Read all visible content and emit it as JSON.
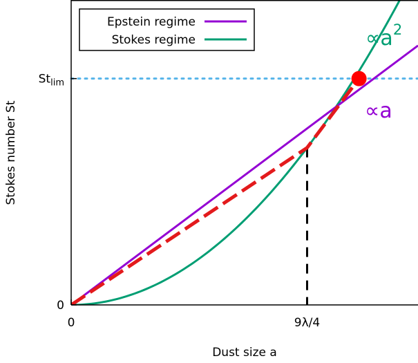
{
  "chart_data": {
    "type": "line",
    "xlabel": "Dust size a",
    "ylabel": "Stokes number St",
    "x_ticks": [
      {
        "value": 0,
        "label": "0"
      },
      {
        "value": 1,
        "label": "9λ/4"
      }
    ],
    "y_ticks": [
      {
        "value": 0,
        "label": "0",
        "sub": ""
      },
      {
        "value": 1.44,
        "label": "St",
        "sub": "lim"
      }
    ],
    "xlim": [
      0,
      1.47
    ],
    "ylim": [
      0,
      1.94
    ],
    "grid": false,
    "legend_position": "top-left",
    "series": [
      {
        "name": "Epstein regime",
        "color": "#9400d3",
        "law": "linear",
        "x": [
          0,
          1.47
        ],
        "y": [
          0,
          1.65
        ]
      },
      {
        "name": "Stokes regime",
        "color": "#009e73",
        "law": "quadratic",
        "x_range": [
          0,
          1.47
        ]
      }
    ],
    "effective_curve": {
      "color": "#e31a1c",
      "style": "dashed",
      "x": [
        0,
        1,
        1.22
      ],
      "y": [
        0,
        1,
        1.44
      ]
    },
    "st_lim_line": {
      "y": 1.44,
      "color": "#56b4e9",
      "style": "dotted"
    },
    "transition_line": {
      "x": 1,
      "color": "#000000",
      "style": "dashed"
    },
    "marker": {
      "x": 1.22,
      "y": 1.44,
      "color": "#ff0000"
    },
    "annotations": [
      {
        "text": "∝a",
        "sup": "2",
        "color": "#009e73"
      },
      {
        "text": "∝a",
        "sup": "",
        "color": "#9400d3"
      }
    ]
  }
}
